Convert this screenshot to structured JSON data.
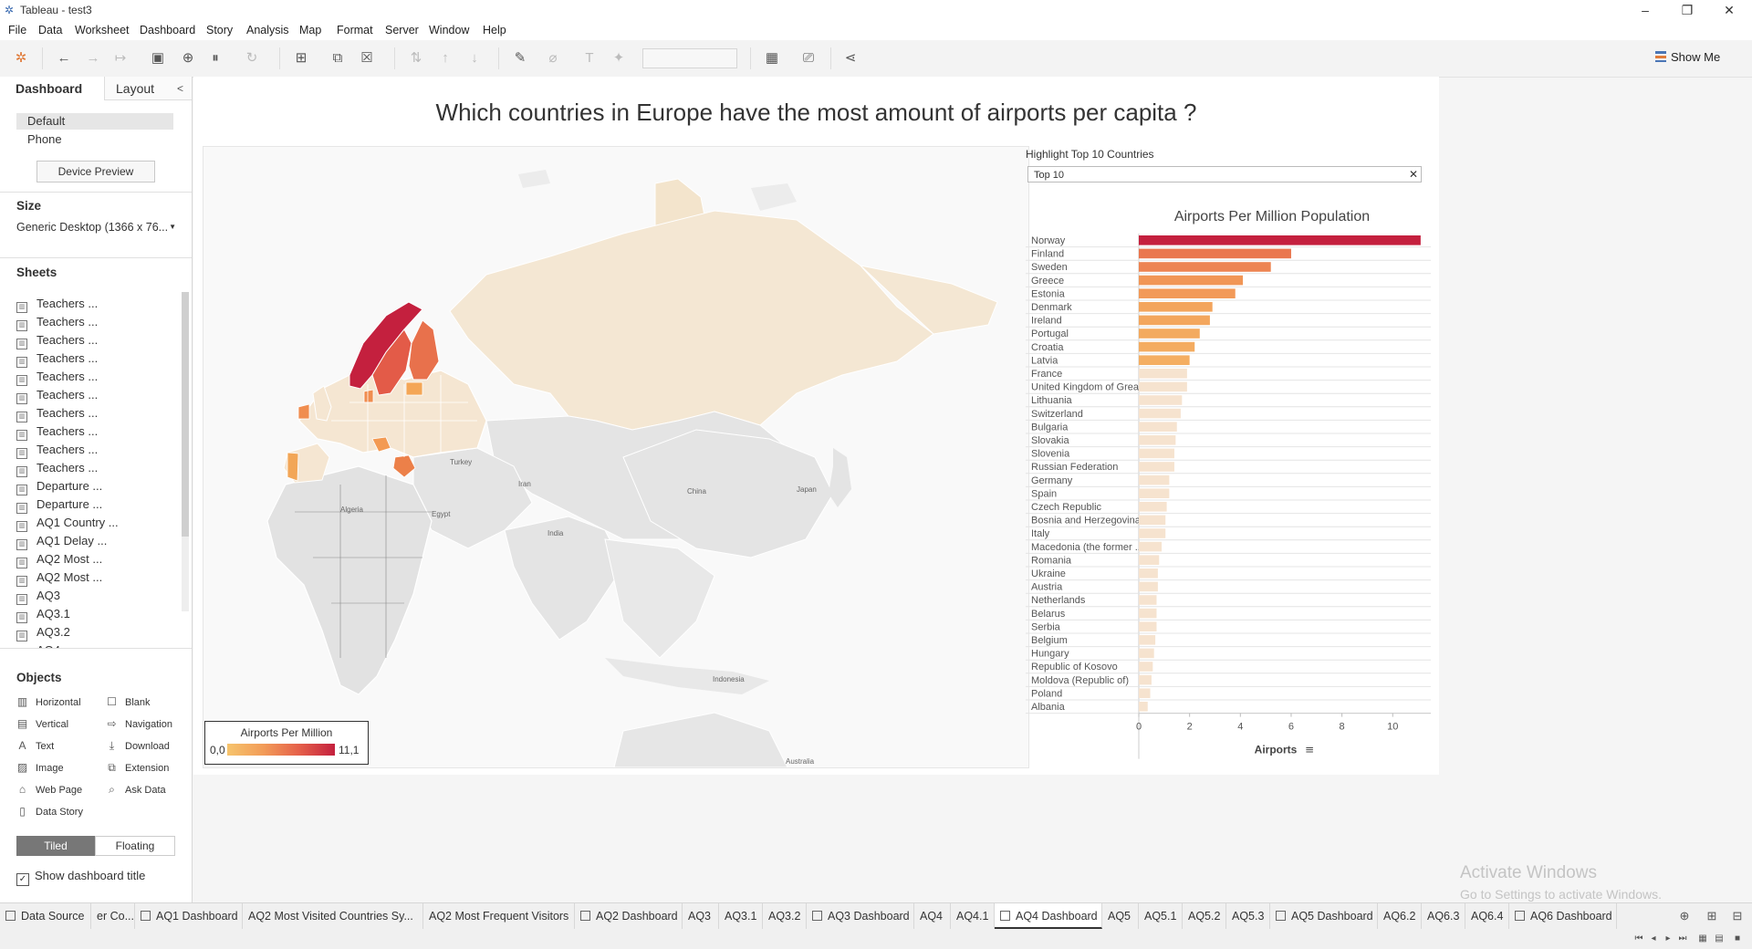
{
  "window": {
    "title": "Tableau - test3"
  },
  "menu": [
    "File",
    "Data",
    "Worksheet",
    "Dashboard",
    "Story",
    "Analysis",
    "Map",
    "Format",
    "Server",
    "Window",
    "Help"
  ],
  "toolbar": {
    "show_me": "Show Me"
  },
  "left_panel": {
    "tabs": {
      "dashboard": "Dashboard",
      "layout": "Layout"
    },
    "devices": [
      "Default",
      "Phone"
    ],
    "device_preview": "Device Preview",
    "size_label": "Size",
    "size_value": "Generic Desktop (1366 x 76...",
    "sheets_label": "Sheets",
    "sheets": [
      "Teachers ...",
      "Teachers ...",
      "Teachers ...",
      "Teachers ...",
      "Teachers ...",
      "Teachers ...",
      "Teachers ...",
      "Teachers ...",
      "Teachers ...",
      "Teachers ...",
      "Departure ...",
      "Departure ...",
      "AQ1 Country ...",
      "AQ1 Delay ...",
      "AQ2 Most ...",
      "AQ2 Most ...",
      "AQ3",
      "AQ3.1",
      "AQ3.2",
      "AQ4"
    ],
    "objects_label": "Objects",
    "objects": [
      {
        "label": "Horizontal",
        "icon": "horizontal-icon"
      },
      {
        "label": "Blank",
        "icon": "blank-icon"
      },
      {
        "label": "Vertical",
        "icon": "vertical-icon"
      },
      {
        "label": "Navigation",
        "icon": "navigation-icon"
      },
      {
        "label": "Text",
        "icon": "text-icon"
      },
      {
        "label": "Download",
        "icon": "download-icon"
      },
      {
        "label": "Image",
        "icon": "image-icon"
      },
      {
        "label": "Extension",
        "icon": "extension-icon"
      },
      {
        "label": "Web Page",
        "icon": "web-page-icon"
      },
      {
        "label": "Ask Data",
        "icon": "ask-data-icon"
      },
      {
        "label": "Data Story",
        "icon": "data-story-icon"
      }
    ],
    "tiled": "Tiled",
    "floating": "Floating",
    "show_title": "Show dashboard title"
  },
  "dashboard": {
    "title": "Which countries in Europe have the most amount of airports per capita ?",
    "highlight_label": "Highlight Top 10 Countries",
    "highlight_value": "Top 10",
    "legend": {
      "title": "Airports Per Million",
      "min": "0,0",
      "max": "11,1"
    },
    "map_labels": [
      "Turkey",
      "Iran",
      "China",
      "Japan",
      "Algeria",
      "Egypt",
      "India",
      "Indonesia",
      "Australia"
    ]
  },
  "chart_data": {
    "type": "bar",
    "title": "Airports Per Million Population",
    "xlabel": "Airports",
    "xlim": [
      0,
      11.5
    ],
    "xticks": [
      0,
      2,
      4,
      6,
      8,
      10
    ],
    "categories": [
      "Norway",
      "Finland",
      "Sweden",
      "Greece",
      "Estonia",
      "Denmark",
      "Ireland",
      "Portugal",
      "Croatia",
      "Latvia",
      "France",
      "United Kingdom of Grea...",
      "Lithuania",
      "Switzerland",
      "Bulgaria",
      "Slovakia",
      "Slovenia",
      "Russian Federation",
      "Germany",
      "Spain",
      "Czech Republic",
      "Bosnia and Herzegovina",
      "Italy",
      "Macedonia (the former ...",
      "Romania",
      "Ukraine",
      "Austria",
      "Netherlands",
      "Belarus",
      "Serbia",
      "Belgium",
      "Hungary",
      "Republic of Kosovo",
      "Moldova (Republic of)",
      "Poland",
      "Albania"
    ],
    "values": [
      11.1,
      6.0,
      5.2,
      4.1,
      3.8,
      2.9,
      2.8,
      2.4,
      2.2,
      2.0,
      1.9,
      1.9,
      1.7,
      1.65,
      1.5,
      1.45,
      1.4,
      1.4,
      1.2,
      1.2,
      1.1,
      1.05,
      1.05,
      0.9,
      0.8,
      0.75,
      0.75,
      0.7,
      0.7,
      0.7,
      0.65,
      0.6,
      0.55,
      0.5,
      0.45,
      0.35
    ],
    "highlight_count": 10,
    "colors": {
      "high": "#c4203e",
      "low": "#f6c46d",
      "faded": "#f6e3cf"
    }
  },
  "sheet_tabs": [
    {
      "label": "Data Source",
      "w": 100
    },
    {
      "label": "er Co...",
      "w": 48
    },
    {
      "label": "AQ1 Dashboard",
      "w": 118,
      "icon": true
    },
    {
      "label": "AQ2 Most Visited Countries Sy...",
      "w": 198
    },
    {
      "label": "AQ2 Most Frequent Visitors",
      "w": 166
    },
    {
      "label": "AQ2 Dashboard",
      "w": 118,
      "icon": true
    },
    {
      "label": "AQ3",
      "w": 40
    },
    {
      "label": "AQ3.1",
      "w": 48
    },
    {
      "label": "AQ3.2",
      "w": 48
    },
    {
      "label": "AQ3 Dashboard",
      "w": 118,
      "icon": true
    },
    {
      "label": "AQ4",
      "w": 40
    },
    {
      "label": "AQ4.1",
      "w": 48
    },
    {
      "label": "AQ4 Dashboard",
      "w": 118,
      "icon": true,
      "active": true
    },
    {
      "label": "AQ5",
      "w": 40
    },
    {
      "label": "AQ5.1",
      "w": 48
    },
    {
      "label": "AQ5.2",
      "w": 48
    },
    {
      "label": "AQ5.3",
      "w": 48
    },
    {
      "label": "AQ5 Dashboard",
      "w": 118,
      "icon": true
    },
    {
      "label": "AQ6.2",
      "w": 48
    },
    {
      "label": "AQ6.3",
      "w": 48
    },
    {
      "label": "AQ6.4",
      "w": 48
    },
    {
      "label": "AQ6 Dashboard",
      "w": 118,
      "icon": true
    }
  ],
  "watermark": {
    "line1": "Activate Windows",
    "line2": "Go to Settings to activate Windows."
  }
}
